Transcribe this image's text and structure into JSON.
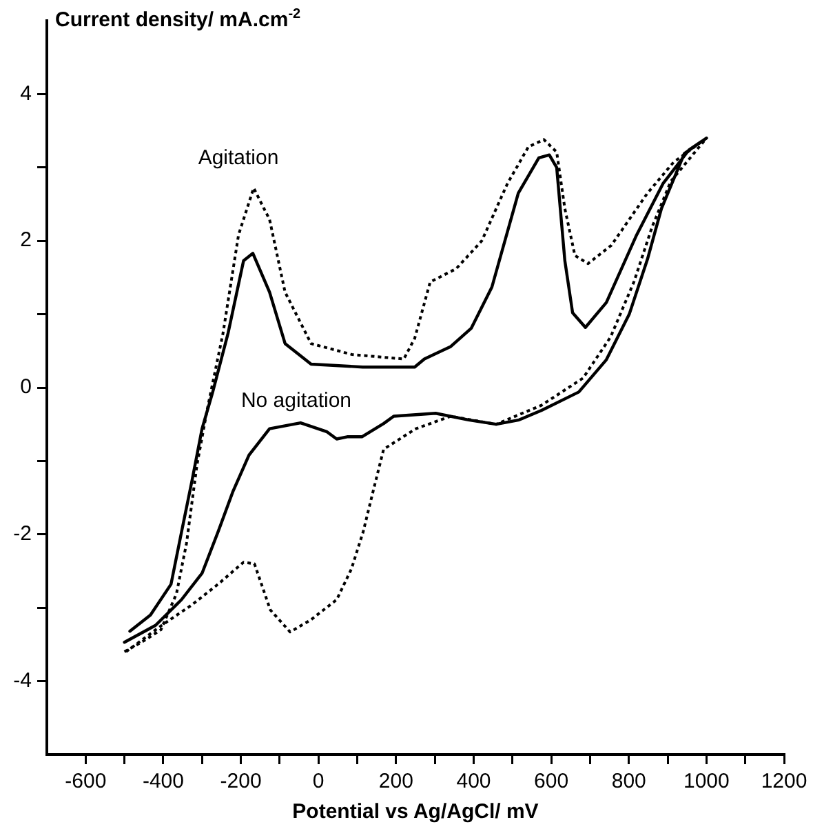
{
  "chart_data": {
    "type": "line",
    "xlabel": "Potential vs Ag/AgCl/ mV",
    "ylabel": "Current density/ mA.cm$^{-2}$",
    "xlim": [
      -700,
      1200
    ],
    "ylim": [
      -5,
      5
    ],
    "xticks": [
      -600,
      {
        "value": -500,
        "label": null
      },
      -400,
      {
        "value": -300,
        "label": null
      },
      -200,
      {
        "value": -100,
        "label": null
      },
      0,
      {
        "value": 100,
        "label": null
      },
      200,
      {
        "value": 300,
        "label": null
      },
      400,
      {
        "value": 500,
        "label": null
      },
      600,
      {
        "value": 700,
        "label": null
      },
      800,
      {
        "value": 900,
        "label": null
      },
      1000,
      {
        "value": 1100,
        "label": null
      },
      1200
    ],
    "yticks": [
      -4,
      {
        "value": -3,
        "label": null
      },
      -2,
      {
        "value": -1,
        "label": null
      },
      0,
      {
        "value": 1,
        "label": null
      },
      2,
      {
        "value": 3,
        "label": null
      },
      4
    ],
    "grid": false,
    "legend": false,
    "marker": "none",
    "annotations": [
      "Agitation",
      "No agitation"
    ],
    "series": [
      {
        "color": "#000000",
        "line_style": "solid",
        "x": [
          -486,
          -433,
          -380,
          -353,
          -326,
          -300,
          -273,
          -233,
          -193,
          -169,
          -126,
          -86,
          -19,
          114,
          248,
          273,
          341,
          394,
          447,
          515,
          568,
          595,
          614,
          635,
          655,
          688,
          742,
          820,
          888,
          955,
          1000,
          943,
          884,
          848,
          801,
          742,
          671,
          575,
          517,
          458,
          387,
          302,
          194,
          168,
          112,
          74,
          47,
          21,
          -46,
          -126,
          -179,
          -220,
          -259,
          -300,
          -353,
          -420,
          -500
        ],
        "values": [
          -3.32,
          -3.1,
          -2.68,
          -1.97,
          -1.27,
          -0.56,
          -0.07,
          0.74,
          1.73,
          1.83,
          1.3,
          0.6,
          0.32,
          0.28,
          0.28,
          0.39,
          0.56,
          0.81,
          1.37,
          2.65,
          3.13,
          3.17,
          3.0,
          1.73,
          1.02,
          0.82,
          1.16,
          2.08,
          2.78,
          3.24,
          3.4,
          3.19,
          2.44,
          1.75,
          1.0,
          0.38,
          -0.06,
          -0.31,
          -0.44,
          -0.5,
          -0.44,
          -0.35,
          -0.39,
          -0.49,
          -0.67,
          -0.67,
          -0.7,
          -0.6,
          -0.48,
          -0.56,
          -0.92,
          -1.41,
          -1.97,
          -2.53,
          -2.89,
          -3.24,
          -3.47
        ]
      },
      {
        "color": "#000000",
        "line_style": "dotted",
        "x": [
          -500,
          -450,
          -406,
          -366,
          -340,
          -313,
          -286,
          -246,
          -206,
          -167,
          -126,
          -86,
          -19,
          87,
          220,
          248,
          288,
          355,
          421,
          487,
          541,
          581,
          614,
          635,
          661,
          695,
          755,
          848,
          915,
          1000,
          908,
          860,
          813,
          753,
          682,
          575,
          458,
          341,
          251,
          168,
          141,
          115,
          85,
          47,
          -21,
          -73,
          -124,
          -165,
          -193,
          -259,
          -326,
          -404,
          -496
        ],
        "values": [
          -3.6,
          -3.45,
          -3.3,
          -2.81,
          -2.12,
          -1.05,
          -0.28,
          0.74,
          2.08,
          2.72,
          2.29,
          1.3,
          0.6,
          0.45,
          0.39,
          0.67,
          1.44,
          1.62,
          2.0,
          2.78,
          3.28,
          3.38,
          3.21,
          2.44,
          1.8,
          1.69,
          1.94,
          2.65,
          3.07,
          3.4,
          2.81,
          2.19,
          1.44,
          0.69,
          0.13,
          -0.24,
          -0.5,
          -0.39,
          -0.56,
          -0.84,
          -1.41,
          -1.97,
          -2.47,
          -2.89,
          -3.17,
          -3.33,
          -3.03,
          -2.4,
          -2.38,
          -2.68,
          -2.96,
          -3.24,
          -3.6
        ]
      }
    ]
  }
}
